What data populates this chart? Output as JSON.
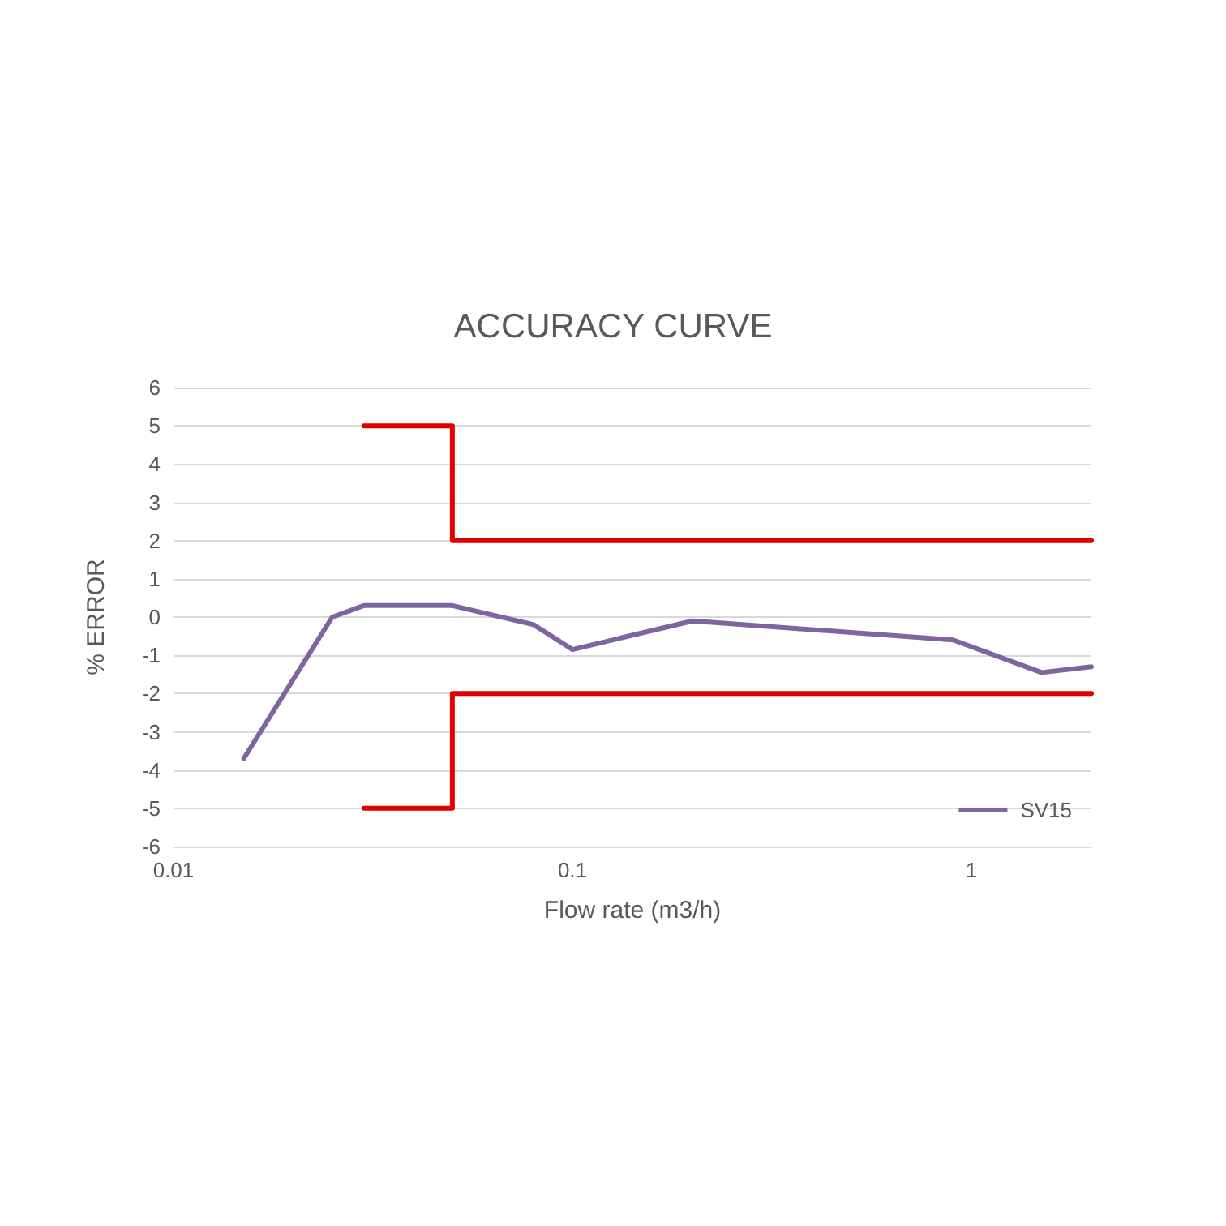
{
  "chart_data": {
    "type": "line",
    "title": "ACCURACY CURVE",
    "xlabel": "Flow rate (m3/h)",
    "ylabel": "% ERROR",
    "log": "x",
    "xlim": [
      0.01,
      2
    ],
    "xticks": [
      0.01,
      0.1,
      1
    ],
    "ylim": [
      -6,
      6
    ],
    "yticks": [
      -6,
      -5,
      -4,
      -3,
      -2,
      -1,
      0,
      1,
      2,
      3,
      4,
      5,
      6
    ],
    "grid": "y",
    "legend": "bottom right",
    "marker": "none",
    "line_style": "solid",
    "series": [
      {
        "name": "SV15",
        "color": "#8064a2",
        "x": [
          0.015,
          0.025,
          0.03,
          0.05,
          0.08,
          0.1,
          0.2,
          0.9,
          1.5,
          2
        ],
        "values": [
          -3.7,
          0,
          0.3,
          0.3,
          -0.2,
          -0.85,
          -0.1,
          -0.6,
          -1.45,
          -1.3
        ]
      },
      {
        "color": "#e00000",
        "x": [
          0.03,
          0.05,
          0.05,
          2
        ],
        "values": [
          5,
          5,
          2,
          2
        ]
      },
      {
        "color": "#e00000",
        "x": [
          0.03,
          0.05,
          0.05,
          2
        ],
        "values": [
          -5,
          -5,
          -2,
          -2
        ]
      }
    ]
  }
}
